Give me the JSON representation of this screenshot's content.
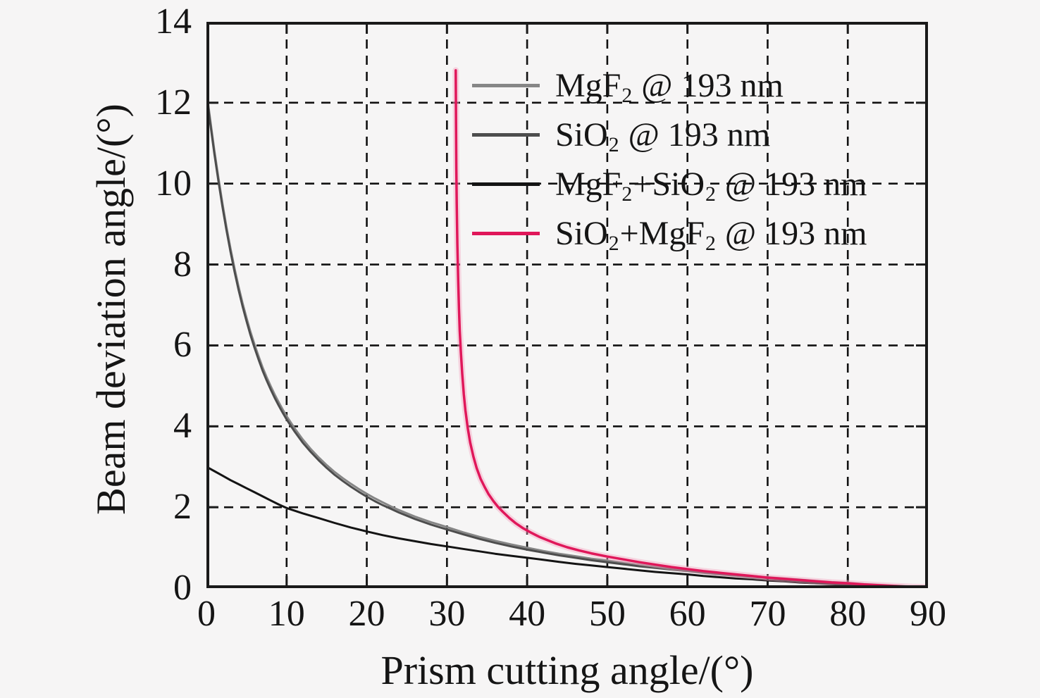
{
  "figure": {
    "background": "#f6f5f5",
    "frame_color": "#1a1a1a",
    "grid_color": "#111111",
    "text_color": "#151515"
  },
  "chart_data": {
    "type": "line",
    "title": "",
    "xlabel": "Prism cutting angle/(°)",
    "ylabel": "Beam deviation angle/(°)",
    "xlim": [
      0,
      90
    ],
    "ylim": [
      0,
      14
    ],
    "xticks": [
      0,
      10,
      20,
      30,
      40,
      50,
      60,
      70,
      80,
      90
    ],
    "yticks": [
      0,
      2,
      4,
      6,
      8,
      10,
      12,
      14
    ],
    "grid": "dashed",
    "legend_position": "top-center-inside",
    "series": [
      {
        "id": "mgf2",
        "name": "MgF2 @ 193 nm",
        "label_segments": [
          {
            "text": "MgF",
            "sub": false
          },
          {
            "text": "2",
            "sub": true
          },
          {
            "text": " @ 193 nm",
            "sub": false
          }
        ],
        "color": "#868686",
        "width": 3,
        "points": [
          [
            0,
            12.3
          ],
          [
            0.5,
            11.53
          ],
          [
            1,
            10.8
          ],
          [
            1.5,
            10.13
          ],
          [
            2,
            9.5
          ],
          [
            2.5,
            8.93
          ],
          [
            3,
            8.4
          ],
          [
            3.5,
            7.91
          ],
          [
            4,
            7.46
          ],
          [
            4.5,
            7.05
          ],
          [
            5,
            6.68
          ],
          [
            5.5,
            6.33
          ],
          [
            6,
            6.02
          ],
          [
            6.5,
            5.73
          ],
          [
            7,
            5.46
          ],
          [
            7.5,
            5.22
          ],
          [
            8,
            5.0
          ],
          [
            8.5,
            4.79
          ],
          [
            9,
            4.6
          ],
          [
            9.5,
            4.42
          ],
          [
            10,
            4.25
          ],
          [
            11,
            3.95
          ],
          [
            12,
            3.68
          ],
          [
            13,
            3.44
          ],
          [
            14,
            3.23
          ],
          [
            15,
            3.04
          ],
          [
            16,
            2.87
          ],
          [
            17,
            2.72
          ],
          [
            18,
            2.58
          ],
          [
            19,
            2.45
          ],
          [
            20,
            2.33
          ],
          [
            21,
            2.22
          ],
          [
            22,
            2.12
          ],
          [
            23,
            2.02
          ],
          [
            24,
            1.93
          ],
          [
            25,
            1.85
          ],
          [
            26,
            1.77
          ],
          [
            27,
            1.7
          ],
          [
            28,
            1.63
          ],
          [
            29,
            1.57
          ],
          [
            30,
            1.51
          ],
          [
            32,
            1.38
          ],
          [
            34,
            1.27
          ],
          [
            36,
            1.17
          ],
          [
            38,
            1.08
          ],
          [
            40,
            1.0
          ],
          [
            42,
            0.92
          ],
          [
            44,
            0.85
          ],
          [
            46,
            0.79
          ],
          [
            48,
            0.73
          ],
          [
            50,
            0.68
          ],
          [
            52,
            0.63
          ],
          [
            54,
            0.58
          ],
          [
            56,
            0.53
          ],
          [
            58,
            0.49
          ],
          [
            60,
            0.45
          ],
          [
            62,
            0.41
          ],
          [
            64,
            0.37
          ],
          [
            66,
            0.33
          ],
          [
            68,
            0.3
          ],
          [
            70,
            0.27
          ],
          [
            72,
            0.24
          ],
          [
            74,
            0.21
          ],
          [
            76,
            0.18
          ],
          [
            78,
            0.15
          ],
          [
            80,
            0.13
          ],
          [
            82,
            0.1
          ],
          [
            84,
            0.08
          ],
          [
            86,
            0.06
          ],
          [
            88,
            0.04
          ],
          [
            90,
            0.02
          ]
        ]
      },
      {
        "id": "sio2",
        "name": "SiO2 @ 193 nm",
        "label_segments": [
          {
            "text": "SiO",
            "sub": false
          },
          {
            "text": "2",
            "sub": true
          },
          {
            "text": " @ 193 nm",
            "sub": false
          }
        ],
        "color": "#4d4d4d",
        "width": 3,
        "points": [
          [
            0,
            12.22
          ],
          [
            0.5,
            11.45
          ],
          [
            1,
            10.72
          ],
          [
            1.5,
            10.05
          ],
          [
            2,
            9.42
          ],
          [
            2.5,
            8.85
          ],
          [
            3,
            8.32
          ],
          [
            3.5,
            7.83
          ],
          [
            4,
            7.38
          ],
          [
            4.5,
            6.97
          ],
          [
            5,
            6.6
          ],
          [
            5.5,
            6.25
          ],
          [
            6,
            5.94
          ],
          [
            6.5,
            5.65
          ],
          [
            7,
            5.38
          ],
          [
            7.5,
            5.14
          ],
          [
            8,
            4.92
          ],
          [
            8.5,
            4.71
          ],
          [
            9,
            4.52
          ],
          [
            9.5,
            4.34
          ],
          [
            10,
            4.17
          ],
          [
            11,
            3.87
          ],
          [
            12,
            3.6
          ],
          [
            13,
            3.37
          ],
          [
            14,
            3.16
          ],
          [
            15,
            2.97
          ],
          [
            16,
            2.8
          ],
          [
            17,
            2.65
          ],
          [
            18,
            2.51
          ],
          [
            19,
            2.38
          ],
          [
            20,
            2.26
          ],
          [
            21,
            2.15
          ],
          [
            22,
            2.05
          ],
          [
            23,
            1.96
          ],
          [
            24,
            1.87
          ],
          [
            25,
            1.79
          ],
          [
            26,
            1.71
          ],
          [
            27,
            1.64
          ],
          [
            28,
            1.57
          ],
          [
            29,
            1.51
          ],
          [
            30,
            1.45
          ],
          [
            32,
            1.33
          ],
          [
            34,
            1.22
          ],
          [
            36,
            1.12
          ],
          [
            38,
            1.03
          ],
          [
            40,
            0.95
          ],
          [
            42,
            0.88
          ],
          [
            44,
            0.81
          ],
          [
            46,
            0.75
          ],
          [
            48,
            0.69
          ],
          [
            50,
            0.64
          ],
          [
            52,
            0.59
          ],
          [
            54,
            0.54
          ],
          [
            56,
            0.5
          ],
          [
            58,
            0.46
          ],
          [
            60,
            0.42
          ],
          [
            62,
            0.38
          ],
          [
            64,
            0.34
          ],
          [
            66,
            0.31
          ],
          [
            68,
            0.28
          ],
          [
            70,
            0.25
          ],
          [
            72,
            0.22
          ],
          [
            74,
            0.19
          ],
          [
            76,
            0.16
          ],
          [
            78,
            0.14
          ],
          [
            80,
            0.11
          ],
          [
            82,
            0.09
          ],
          [
            84,
            0.07
          ],
          [
            86,
            0.05
          ],
          [
            88,
            0.03
          ],
          [
            90,
            0.02
          ]
        ]
      },
      {
        "id": "mgf2-sio2",
        "name": "MgF2+SiO2 @ 193 nm",
        "label_segments": [
          {
            "text": "MgF",
            "sub": false
          },
          {
            "text": "2",
            "sub": true
          },
          {
            "text": "+SiO",
            "sub": false
          },
          {
            "text": "2",
            "sub": true
          },
          {
            "text": " @ 193 nm",
            "sub": false
          }
        ],
        "color": "#141414",
        "width": 3,
        "points": [
          [
            0,
            3.0
          ],
          [
            1,
            2.89
          ],
          [
            2,
            2.78
          ],
          [
            3,
            2.67
          ],
          [
            4,
            2.57
          ],
          [
            5,
            2.47
          ],
          [
            6,
            2.37
          ],
          [
            7,
            2.27
          ],
          [
            8,
            2.17
          ],
          [
            9,
            2.07
          ],
          [
            10,
            1.98
          ],
          [
            12,
            1.85
          ],
          [
            14,
            1.73
          ],
          [
            16,
            1.61
          ],
          [
            18,
            1.5
          ],
          [
            20,
            1.4
          ],
          [
            22,
            1.31
          ],
          [
            24,
            1.23
          ],
          [
            26,
            1.16
          ],
          [
            28,
            1.09
          ],
          [
            30,
            1.03
          ],
          [
            32,
            0.97
          ],
          [
            34,
            0.91
          ],
          [
            36,
            0.85
          ],
          [
            38,
            0.8
          ],
          [
            40,
            0.75
          ],
          [
            42,
            0.7
          ],
          [
            44,
            0.65
          ],
          [
            46,
            0.6
          ],
          [
            48,
            0.56
          ],
          [
            50,
            0.52
          ],
          [
            52,
            0.48
          ],
          [
            54,
            0.44
          ],
          [
            56,
            0.4
          ],
          [
            58,
            0.37
          ],
          [
            60,
            0.34
          ],
          [
            62,
            0.3
          ],
          [
            64,
            0.27
          ],
          [
            66,
            0.24
          ],
          [
            68,
            0.22
          ],
          [
            70,
            0.19
          ],
          [
            72,
            0.17
          ],
          [
            74,
            0.14
          ],
          [
            76,
            0.12
          ],
          [
            78,
            0.1
          ],
          [
            80,
            0.08
          ],
          [
            82,
            0.06
          ],
          [
            84,
            0.05
          ],
          [
            86,
            0.03
          ],
          [
            88,
            0.02
          ],
          [
            90,
            0.01
          ]
        ]
      },
      {
        "id": "sio2-mgf2",
        "name": "SiO2+MgF2 @ 193 nm",
        "label_segments": [
          {
            "text": "SiO",
            "sub": false
          },
          {
            "text": "2",
            "sub": true
          },
          {
            "text": "+MgF",
            "sub": false
          },
          {
            "text": "2",
            "sub": true
          },
          {
            "text": " @ 193 nm",
            "sub": false
          }
        ],
        "color": "#e0175a",
        "halo": "#f5a9c4",
        "width": 3.5,
        "points": [
          [
            31.1,
            12.8
          ],
          [
            31.13,
            11.5
          ],
          [
            31.17,
            10.4
          ],
          [
            31.22,
            9.5
          ],
          [
            31.3,
            8.5
          ],
          [
            31.4,
            7.6
          ],
          [
            31.5,
            6.9
          ],
          [
            31.6,
            6.35
          ],
          [
            31.75,
            5.8
          ],
          [
            31.9,
            5.3
          ],
          [
            32.1,
            4.8
          ],
          [
            32.3,
            4.4
          ],
          [
            32.6,
            3.95
          ],
          [
            32.9,
            3.6
          ],
          [
            33.3,
            3.25
          ],
          [
            33.7,
            2.97
          ],
          [
            34.2,
            2.7
          ],
          [
            34.7,
            2.5
          ],
          [
            35.2,
            2.32
          ],
          [
            35.8,
            2.15
          ],
          [
            36.4,
            2.0
          ],
          [
            37,
            1.88
          ],
          [
            37.8,
            1.73
          ],
          [
            38.6,
            1.6
          ],
          [
            39.5,
            1.48
          ],
          [
            40.5,
            1.37
          ],
          [
            41.5,
            1.27
          ],
          [
            42.5,
            1.19
          ],
          [
            43.5,
            1.11
          ],
          [
            45,
            1.01
          ],
          [
            46.5,
            0.93
          ],
          [
            48,
            0.86
          ],
          [
            50,
            0.78
          ],
          [
            52,
            0.71
          ],
          [
            54,
            0.64
          ],
          [
            56,
            0.58
          ],
          [
            58,
            0.52
          ],
          [
            60,
            0.47
          ],
          [
            62,
            0.42
          ],
          [
            64,
            0.38
          ],
          [
            66,
            0.34
          ],
          [
            68,
            0.3
          ],
          [
            70,
            0.26
          ],
          [
            72,
            0.23
          ],
          [
            74,
            0.2
          ],
          [
            76,
            0.17
          ],
          [
            78,
            0.14
          ],
          [
            80,
            0.12
          ],
          [
            82,
            0.09
          ],
          [
            84,
            0.07
          ],
          [
            86,
            0.05
          ],
          [
            88,
            0.03
          ],
          [
            90,
            0.02
          ]
        ]
      }
    ]
  }
}
